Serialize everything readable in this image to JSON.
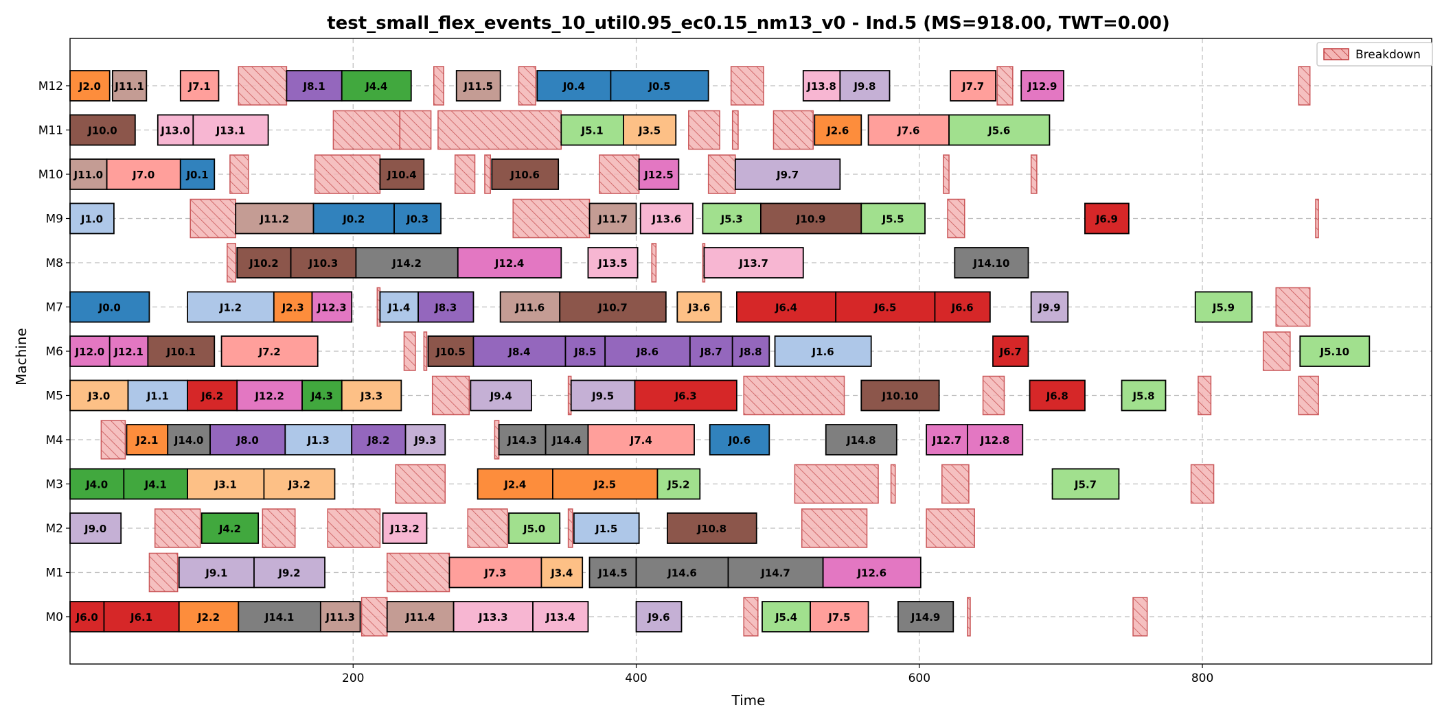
{
  "chart_data": {
    "type": "gantt",
    "title": "test_small_flex_events_10_util0.95_ec0.15_nm13_v0 - Ind.5 (MS=918.00, TWT=0.00)",
    "xlabel": "Time",
    "ylabel": "Machine",
    "xlim": [
      0,
      962
    ],
    "xticks": [
      200,
      400,
      600,
      800
    ],
    "machines": [
      "M0",
      "M1",
      "M2",
      "M3",
      "M4",
      "M5",
      "M6",
      "M7",
      "M8",
      "M9",
      "M10",
      "M11",
      "M12"
    ],
    "grid": true,
    "legend": {
      "position": "top-right",
      "entries": [
        {
          "label": "Breakdown",
          "color": "#f4b6b6",
          "hatch": true
        }
      ]
    },
    "job_colors": {
      "J0": "#3182bd",
      "J1": "#aec7e8",
      "J2": "#fd8d3c",
      "J3": "#fdc086",
      "J4": "#41a83e",
      "J5": "#a1e08e",
      "J6": "#d62728",
      "J7": "#ff9f9b",
      "J8": "#9467bd",
      "J9": "#c5b0d5",
      "J10": "#8c564b",
      "J11": "#c49c94",
      "J12": "#e377c2",
      "J13": "#f7b6d2",
      "J14": "#7f7f7f"
    },
    "operations": [
      {
        "m": "M0",
        "label": "J6.0",
        "start": 0,
        "end": 24
      },
      {
        "m": "M0",
        "label": "J6.1",
        "start": 24,
        "end": 77
      },
      {
        "m": "M0",
        "label": "J2.2",
        "start": 77,
        "end": 119
      },
      {
        "m": "M0",
        "label": "J14.1",
        "start": 119,
        "end": 177
      },
      {
        "m": "M0",
        "label": "J11.3",
        "start": 177,
        "end": 205
      },
      {
        "m": "M0",
        "label": "J11.4",
        "start": 224,
        "end": 271
      },
      {
        "m": "M0",
        "label": "J13.3",
        "start": 271,
        "end": 327
      },
      {
        "m": "M0",
        "label": "J13.4",
        "start": 327,
        "end": 366
      },
      {
        "m": "M0",
        "label": "J9.6",
        "start": 400,
        "end": 432
      },
      {
        "m": "M0",
        "label": "J5.4",
        "start": 489,
        "end": 523
      },
      {
        "m": "M0",
        "label": "J7.5",
        "start": 523,
        "end": 564
      },
      {
        "m": "M0",
        "label": "J14.9",
        "start": 585,
        "end": 624
      },
      {
        "m": "M1",
        "label": "J9.1",
        "start": 77,
        "end": 130
      },
      {
        "m": "M1",
        "label": "J9.2",
        "start": 130,
        "end": 180
      },
      {
        "m": "M1",
        "label": "J7.3",
        "start": 268,
        "end": 333
      },
      {
        "m": "M1",
        "label": "J3.4",
        "start": 333,
        "end": 362
      },
      {
        "m": "M1",
        "label": "J14.5",
        "start": 367,
        "end": 400
      },
      {
        "m": "M1",
        "label": "J14.6",
        "start": 400,
        "end": 465
      },
      {
        "m": "M1",
        "label": "J14.7",
        "start": 465,
        "end": 532
      },
      {
        "m": "M1",
        "label": "J12.6",
        "start": 532,
        "end": 601
      },
      {
        "m": "M2",
        "label": "J9.0",
        "start": 0,
        "end": 36
      },
      {
        "m": "M2",
        "label": "J4.2",
        "start": 93,
        "end": 133
      },
      {
        "m": "M2",
        "label": "J13.2",
        "start": 221,
        "end": 252
      },
      {
        "m": "M2",
        "label": "J5.0",
        "start": 310,
        "end": 346
      },
      {
        "m": "M2",
        "label": "J1.5",
        "start": 356,
        "end": 402
      },
      {
        "m": "M2",
        "label": "J10.8",
        "start": 422,
        "end": 485
      },
      {
        "m": "M3",
        "label": "J4.0",
        "start": 0,
        "end": 38
      },
      {
        "m": "M3",
        "label": "J4.1",
        "start": 38,
        "end": 83
      },
      {
        "m": "M3",
        "label": "J3.1",
        "start": 83,
        "end": 137
      },
      {
        "m": "M3",
        "label": "J3.2",
        "start": 137,
        "end": 187
      },
      {
        "m": "M3",
        "label": "J2.4",
        "start": 288,
        "end": 341
      },
      {
        "m": "M3",
        "label": "J2.5",
        "start": 341,
        "end": 415
      },
      {
        "m": "M3",
        "label": "J5.2",
        "start": 415,
        "end": 445
      },
      {
        "m": "M3",
        "label": "J5.7",
        "start": 694,
        "end": 741
      },
      {
        "m": "M4",
        "label": "J2.1",
        "start": 40,
        "end": 69
      },
      {
        "m": "M4",
        "label": "J14.0",
        "start": 69,
        "end": 99
      },
      {
        "m": "M4",
        "label": "J8.0",
        "start": 99,
        "end": 152
      },
      {
        "m": "M4",
        "label": "J1.3",
        "start": 152,
        "end": 199
      },
      {
        "m": "M4",
        "label": "J8.2",
        "start": 199,
        "end": 237
      },
      {
        "m": "M4",
        "label": "J9.3",
        "start": 237,
        "end": 265
      },
      {
        "m": "M4",
        "label": "J14.3",
        "start": 303,
        "end": 336
      },
      {
        "m": "M4",
        "label": "J14.4",
        "start": 336,
        "end": 366
      },
      {
        "m": "M4",
        "label": "J7.4",
        "start": 366,
        "end": 441
      },
      {
        "m": "M4",
        "label": "J0.6",
        "start": 452,
        "end": 494
      },
      {
        "m": "M4",
        "label": "J14.8",
        "start": 534,
        "end": 584
      },
      {
        "m": "M4",
        "label": "J12.7",
        "start": 605,
        "end": 634
      },
      {
        "m": "M4",
        "label": "J12.8",
        "start": 634,
        "end": 673
      },
      {
        "m": "M5",
        "label": "J3.0",
        "start": 0,
        "end": 41
      },
      {
        "m": "M5",
        "label": "J1.1",
        "start": 41,
        "end": 83
      },
      {
        "m": "M5",
        "label": "J6.2",
        "start": 83,
        "end": 118
      },
      {
        "m": "M5",
        "label": "J12.2",
        "start": 118,
        "end": 164
      },
      {
        "m": "M5",
        "label": "J4.3",
        "start": 164,
        "end": 192
      },
      {
        "m": "M5",
        "label": "J3.3",
        "start": 192,
        "end": 234
      },
      {
        "m": "M5",
        "label": "J9.4",
        "start": 283,
        "end": 326
      },
      {
        "m": "M5",
        "label": "J9.5",
        "start": 354,
        "end": 399
      },
      {
        "m": "M5",
        "label": "J6.3",
        "start": 399,
        "end": 471
      },
      {
        "m": "M5",
        "label": "J10.10",
        "start": 559,
        "end": 614
      },
      {
        "m": "M5",
        "label": "J6.8",
        "start": 678,
        "end": 717
      },
      {
        "m": "M5",
        "label": "J5.8",
        "start": 743,
        "end": 774
      },
      {
        "m": "M6",
        "label": "J12.0",
        "start": 0,
        "end": 28
      },
      {
        "m": "M6",
        "label": "J12.1",
        "start": 28,
        "end": 55
      },
      {
        "m": "M6",
        "label": "J10.1",
        "start": 55,
        "end": 102
      },
      {
        "m": "M6",
        "label": "J7.2",
        "start": 107,
        "end": 175
      },
      {
        "m": "M6",
        "label": "J10.5",
        "start": 253,
        "end": 285
      },
      {
        "m": "M6",
        "label": "J8.4",
        "start": 285,
        "end": 350
      },
      {
        "m": "M6",
        "label": "J8.5",
        "start": 350,
        "end": 378
      },
      {
        "m": "M6",
        "label": "J8.6",
        "start": 378,
        "end": 438
      },
      {
        "m": "M6",
        "label": "J8.7",
        "start": 438,
        "end": 468
      },
      {
        "m": "M6",
        "label": "J8.8",
        "start": 468,
        "end": 494
      },
      {
        "m": "M6",
        "label": "J1.6",
        "start": 498,
        "end": 566
      },
      {
        "m": "M6",
        "label": "J6.7",
        "start": 652,
        "end": 677
      },
      {
        "m": "M6",
        "label": "J5.10",
        "start": 869,
        "end": 918
      },
      {
        "m": "M7",
        "label": "J0.0",
        "start": 0,
        "end": 56
      },
      {
        "m": "M7",
        "label": "J1.2",
        "start": 83,
        "end": 144
      },
      {
        "m": "M7",
        "label": "J2.3",
        "start": 144,
        "end": 171
      },
      {
        "m": "M7",
        "label": "J12.3",
        "start": 171,
        "end": 199
      },
      {
        "m": "M7",
        "label": "J1.4",
        "start": 219,
        "end": 246
      },
      {
        "m": "M7",
        "label": "J8.3",
        "start": 246,
        "end": 285
      },
      {
        "m": "M7",
        "label": "J11.6",
        "start": 304,
        "end": 346
      },
      {
        "m": "M7",
        "label": "J10.7",
        "start": 346,
        "end": 421
      },
      {
        "m": "M7",
        "label": "J3.6",
        "start": 429,
        "end": 460
      },
      {
        "m": "M7",
        "label": "J6.4",
        "start": 471,
        "end": 541
      },
      {
        "m": "M7",
        "label": "J6.5",
        "start": 541,
        "end": 611
      },
      {
        "m": "M7",
        "label": "J6.6",
        "start": 611,
        "end": 650
      },
      {
        "m": "M7",
        "label": "J9.9",
        "start": 679,
        "end": 705
      },
      {
        "m": "M7",
        "label": "J5.9",
        "start": 795,
        "end": 835
      },
      {
        "m": "M8",
        "label": "J10.2",
        "start": 118,
        "end": 156
      },
      {
        "m": "M8",
        "label": "J10.3",
        "start": 156,
        "end": 202
      },
      {
        "m": "M8",
        "label": "J14.2",
        "start": 202,
        "end": 274
      },
      {
        "m": "M8",
        "label": "J12.4",
        "start": 274,
        "end": 347
      },
      {
        "m": "M8",
        "label": "J13.5",
        "start": 366,
        "end": 401
      },
      {
        "m": "M8",
        "label": "J13.7",
        "start": 448,
        "end": 518
      },
      {
        "m": "M8",
        "label": "J14.10",
        "start": 625,
        "end": 677
      },
      {
        "m": "M9",
        "label": "J1.0",
        "start": 0,
        "end": 31
      },
      {
        "m": "M9",
        "label": "J11.2",
        "start": 117,
        "end": 172
      },
      {
        "m": "M9",
        "label": "J0.2",
        "start": 172,
        "end": 229
      },
      {
        "m": "M9",
        "label": "J0.3",
        "start": 229,
        "end": 262
      },
      {
        "m": "M9",
        "label": "J11.7",
        "start": 367,
        "end": 400
      },
      {
        "m": "M9",
        "label": "J13.6",
        "start": 403,
        "end": 440
      },
      {
        "m": "M9",
        "label": "J5.3",
        "start": 447,
        "end": 488
      },
      {
        "m": "M9",
        "label": "J10.9",
        "start": 488,
        "end": 559
      },
      {
        "m": "M9",
        "label": "J5.5",
        "start": 559,
        "end": 604
      },
      {
        "m": "M9",
        "label": "J6.9",
        "start": 717,
        "end": 748
      },
      {
        "m": "M10",
        "label": "J11.0",
        "start": 0,
        "end": 26
      },
      {
        "m": "M10",
        "label": "J7.0",
        "start": 26,
        "end": 78
      },
      {
        "m": "M10",
        "label": "J0.1",
        "start": 78,
        "end": 102
      },
      {
        "m": "M10",
        "label": "J10.4",
        "start": 219,
        "end": 250
      },
      {
        "m": "M10",
        "label": "J10.6",
        "start": 298,
        "end": 345
      },
      {
        "m": "M10",
        "label": "J12.5",
        "start": 402,
        "end": 430
      },
      {
        "m": "M10",
        "label": "J9.7",
        "start": 470,
        "end": 544
      },
      {
        "m": "M11",
        "label": "J10.0",
        "start": 0,
        "end": 46
      },
      {
        "m": "M11",
        "label": "J13.0",
        "start": 62,
        "end": 87
      },
      {
        "m": "M11",
        "label": "J13.1",
        "start": 87,
        "end": 140
      },
      {
        "m": "M11",
        "label": "J5.1",
        "start": 347,
        "end": 391
      },
      {
        "m": "M11",
        "label": "J3.5",
        "start": 391,
        "end": 428
      },
      {
        "m": "M11",
        "label": "J2.6",
        "start": 526,
        "end": 559
      },
      {
        "m": "M11",
        "label": "J7.6",
        "start": 564,
        "end": 621
      },
      {
        "m": "M11",
        "label": "J5.6",
        "start": 621,
        "end": 692
      },
      {
        "m": "M12",
        "label": "J2.0",
        "start": 0,
        "end": 28
      },
      {
        "m": "M12",
        "label": "J11.1",
        "start": 30,
        "end": 54
      },
      {
        "m": "M12",
        "label": "J7.1",
        "start": 78,
        "end": 105
      },
      {
        "m": "M12",
        "label": "J8.1",
        "start": 153,
        "end": 192
      },
      {
        "m": "M12",
        "label": "J4.4",
        "start": 192,
        "end": 241
      },
      {
        "m": "M12",
        "label": "J11.5",
        "start": 273,
        "end": 304
      },
      {
        "m": "M12",
        "label": "J0.4",
        "start": 330,
        "end": 382
      },
      {
        "m": "M12",
        "label": "J0.5",
        "start": 382,
        "end": 451
      },
      {
        "m": "M12",
        "label": "J13.8",
        "start": 518,
        "end": 544
      },
      {
        "m": "M12",
        "label": "J9.8",
        "start": 544,
        "end": 579
      },
      {
        "m": "M12",
        "label": "J7.7",
        "start": 622,
        "end": 654
      },
      {
        "m": "M12",
        "label": "J12.9",
        "start": 672,
        "end": 702
      }
    ],
    "breakdowns": [
      {
        "m": "M0",
        "start": 206,
        "end": 224
      },
      {
        "m": "M0",
        "start": 476,
        "end": 486
      },
      {
        "m": "M0",
        "start": 634,
        "end": 636
      },
      {
        "m": "M0",
        "start": 751,
        "end": 761
      },
      {
        "m": "M1",
        "start": 56,
        "end": 76
      },
      {
        "m": "M1",
        "start": 224,
        "end": 268
      },
      {
        "m": "M2",
        "start": 60,
        "end": 92
      },
      {
        "m": "M2",
        "start": 136,
        "end": 159
      },
      {
        "m": "M2",
        "start": 182,
        "end": 219
      },
      {
        "m": "M2",
        "start": 281,
        "end": 309
      },
      {
        "m": "M2",
        "start": 352,
        "end": 355
      },
      {
        "m": "M2",
        "start": 517,
        "end": 563
      },
      {
        "m": "M2",
        "start": 605,
        "end": 639
      },
      {
        "m": "M3",
        "start": 230,
        "end": 265
      },
      {
        "m": "M3",
        "start": 512,
        "end": 571
      },
      {
        "m": "M3",
        "start": 580,
        "end": 583
      },
      {
        "m": "M3",
        "start": 616,
        "end": 635
      },
      {
        "m": "M3",
        "start": 792,
        "end": 808
      },
      {
        "m": "M4",
        "start": 22,
        "end": 39
      },
      {
        "m": "M4",
        "start": 300,
        "end": 303
      },
      {
        "m": "M5",
        "start": 256,
        "end": 282
      },
      {
        "m": "M5",
        "start": 352,
        "end": 354
      },
      {
        "m": "M5",
        "start": 476,
        "end": 547
      },
      {
        "m": "M5",
        "start": 645,
        "end": 660
      },
      {
        "m": "M5",
        "start": 797,
        "end": 806
      },
      {
        "m": "M5",
        "start": 868,
        "end": 882
      },
      {
        "m": "M6",
        "start": 236,
        "end": 244
      },
      {
        "m": "M6",
        "start": 250,
        "end": 252
      },
      {
        "m": "M6",
        "start": 843,
        "end": 862
      },
      {
        "m": "M7",
        "start": 217,
        "end": 219
      },
      {
        "m": "M7",
        "start": 852,
        "end": 876
      },
      {
        "m": "M8",
        "start": 111,
        "end": 117
      },
      {
        "m": "M8",
        "start": 411,
        "end": 414
      },
      {
        "m": "M8",
        "start": 447,
        "end": 448
      },
      {
        "m": "M9",
        "start": 85,
        "end": 117
      },
      {
        "m": "M9",
        "start": 313,
        "end": 367
      },
      {
        "m": "M9",
        "start": 620,
        "end": 632
      },
      {
        "m": "M9",
        "start": 880,
        "end": 882
      },
      {
        "m": "M10",
        "start": 113,
        "end": 126
      },
      {
        "m": "M10",
        "start": 173,
        "end": 219
      },
      {
        "m": "M10",
        "start": 272,
        "end": 286
      },
      {
        "m": "M10",
        "start": 293,
        "end": 297
      },
      {
        "m": "M10",
        "start": 374,
        "end": 402
      },
      {
        "m": "M10",
        "start": 451,
        "end": 470
      },
      {
        "m": "M10",
        "start": 617,
        "end": 621
      },
      {
        "m": "M10",
        "start": 679,
        "end": 683
      },
      {
        "m": "M11",
        "start": 186,
        "end": 233
      },
      {
        "m": "M11",
        "start": 233,
        "end": 255
      },
      {
        "m": "M11",
        "start": 260,
        "end": 347
      },
      {
        "m": "M11",
        "start": 437,
        "end": 459
      },
      {
        "m": "M11",
        "start": 468,
        "end": 472
      },
      {
        "m": "M11",
        "start": 497,
        "end": 525
      },
      {
        "m": "M12",
        "start": 119,
        "end": 153
      },
      {
        "m": "M12",
        "start": 257,
        "end": 264
      },
      {
        "m": "M12",
        "start": 317,
        "end": 329
      },
      {
        "m": "M12",
        "start": 467,
        "end": 490
      },
      {
        "m": "M12",
        "start": 655,
        "end": 666
      },
      {
        "m": "M12",
        "start": 868,
        "end": 876
      }
    ]
  }
}
